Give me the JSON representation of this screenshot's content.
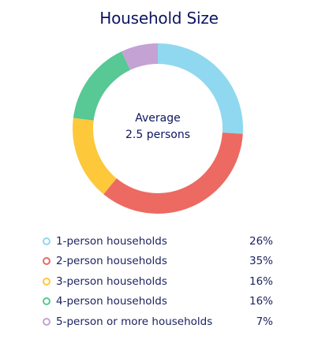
{
  "chart_data": {
    "type": "pie",
    "title": "Household Size",
    "center_text": [
      "Average",
      "2.5 persons"
    ],
    "categories": [
      "1-person households",
      "2-person households",
      "3-person households",
      "4-person households",
      "5-person or more households"
    ],
    "values": [
      26,
      35,
      16,
      16,
      7
    ],
    "value_labels": [
      "26%",
      "35%",
      "16%",
      "16%",
      "7%"
    ],
    "colors": [
      "#8fd8f0",
      "#ec6a62",
      "#fdc83a",
      "#58c894",
      "#c4a2d4"
    ],
    "legend": "bottom"
  }
}
